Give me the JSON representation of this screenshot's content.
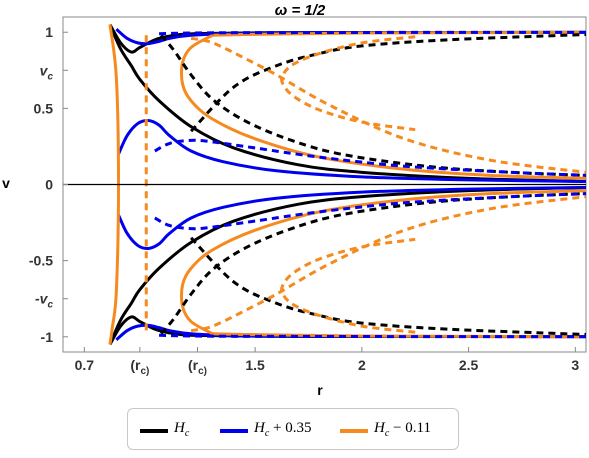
{
  "chart_data": {
    "type": "line",
    "title": "ω = 1/2",
    "xlabel": "r",
    "ylabel": "v",
    "xlim": [
      0.6,
      3.05
    ],
    "ylim": [
      -1.1,
      1.1
    ],
    "x_ticks": [
      {
        "value": 0.7,
        "label": "0.7"
      },
      {
        "value": 0.96,
        "label": "(r_c)_6D"
      },
      {
        "value": 1.23,
        "label": "(r_c)_5D"
      },
      {
        "value": 1.5,
        "label": "1.5"
      },
      {
        "value": 2.0,
        "label": "2"
      },
      {
        "value": 2.5,
        "label": "2.5"
      },
      {
        "value": 3.0,
        "label": "3"
      }
    ],
    "y_ticks": [
      {
        "value": 1,
        "label": "1"
      },
      {
        "value": 0.75,
        "label": "v_c"
      },
      {
        "value": 0.5,
        "label": "0.5"
      },
      {
        "value": 0,
        "label": "0"
      },
      {
        "value": -0.5,
        "label": "-0.5"
      },
      {
        "value": -0.75,
        "label": "-v_c"
      },
      {
        "value": -1,
        "label": "-1"
      }
    ],
    "legend_position": "bottom",
    "series": [
      {
        "name": "H_c",
        "color": "#000000",
        "style": "solid",
        "curves": [
          {
            "x": [
              0.82,
              0.87,
              0.92,
              0.96,
              1.05,
              1.2,
              1.4,
              1.7,
              2.0,
              2.5,
              3.05
            ],
            "y": [
              1.05,
              0.89,
              0.78,
              0.69,
              0.55,
              0.38,
              0.24,
              0.13,
              0.08,
              0.04,
              0.02
            ]
          },
          {
            "x": [
              0.82,
              0.87,
              0.92,
              0.96,
              1.05,
              1.2,
              1.4,
              1.7,
              2.0,
              2.5,
              3.05
            ],
            "y": [
              -1.05,
              -0.89,
              -0.78,
              -0.69,
              -0.55,
              -0.38,
              -0.24,
              -0.13,
              -0.08,
              -0.04,
              -0.02
            ]
          },
          {
            "x": [
              0.82,
              0.87,
              0.92,
              0.96,
              1.03,
              1.1,
              1.15,
              1.25,
              1.5,
              2.0,
              3.05
            ],
            "y": [
              1.05,
              0.93,
              0.87,
              0.9,
              0.95,
              0.975,
              0.985,
              0.992,
              0.996,
              0.998,
              0.999
            ]
          },
          {
            "x": [
              0.82,
              0.87,
              0.92,
              0.96,
              1.03,
              1.1,
              1.15,
              1.25,
              1.5,
              2.0,
              3.05
            ],
            "y": [
              -1.05,
              -0.93,
              -0.87,
              -0.9,
              -0.95,
              -0.975,
              -0.985,
              -0.992,
              -0.996,
              -0.998,
              -0.999
            ]
          }
        ]
      },
      {
        "name": "H_c + 0.35",
        "color": "#0000ee",
        "style": "solid",
        "curves": [
          {
            "x": [
              0.86,
              0.9,
              0.95,
              1.0,
              1.05,
              1.1,
              1.2,
              1.35,
              1.6,
              2.0,
              2.5,
              3.05
            ],
            "y": [
              0.2,
              0.32,
              0.4,
              0.42,
              0.39,
              0.32,
              0.22,
              0.15,
              0.09,
              0.05,
              0.03,
              0.02
            ]
          },
          {
            "x": [
              0.86,
              0.9,
              0.95,
              1.0,
              1.05,
              1.1,
              1.2,
              1.35,
              1.6,
              2.0,
              2.5,
              3.05
            ],
            "y": [
              -0.2,
              -0.32,
              -0.4,
              -0.42,
              -0.39,
              -0.32,
              -0.22,
              -0.15,
              -0.09,
              -0.05,
              -0.03,
              -0.02
            ]
          },
          {
            "x": [
              0.85,
              0.9,
              0.95,
              1.0,
              1.05,
              1.1,
              1.2,
              1.4,
              1.8,
              3.05
            ],
            "y": [
              1.02,
              0.96,
              0.93,
              0.925,
              0.94,
              0.96,
              0.98,
              0.992,
              0.997,
              0.999
            ]
          },
          {
            "x": [
              0.85,
              0.9,
              0.95,
              1.0,
              1.05,
              1.1,
              1.2,
              1.4,
              1.8,
              3.05
            ],
            "y": [
              -1.02,
              -0.96,
              -0.93,
              -0.925,
              -0.94,
              -0.96,
              -0.98,
              -0.992,
              -0.997,
              -0.999
            ]
          }
        ]
      },
      {
        "name": "H_c - 0.11",
        "color": "#f58a1f",
        "style": "solid",
        "curves": [
          {
            "x": [
              0.82,
              0.85,
              0.86,
              0.85,
              0.83,
              0.82
            ],
            "y": [
              1.05,
              0.7,
              0.0,
              -0.7,
              -0.95,
              -1.05
            ]
          },
          {
            "x": [
              1.3,
              1.2,
              1.16,
              1.16,
              1.2,
              1.3,
              1.5,
              1.8,
              2.2,
              2.6,
              3.05
            ],
            "y": [
              0.98,
              0.9,
              0.8,
              0.66,
              0.55,
              0.43,
              0.3,
              0.18,
              0.1,
              0.06,
              0.04
            ]
          },
          {
            "x": [
              1.3,
              1.2,
              1.16,
              1.16,
              1.2,
              1.3,
              1.5,
              1.8,
              2.2,
              2.6,
              3.05
            ],
            "y": [
              -0.98,
              -0.9,
              -0.8,
              -0.66,
              -0.55,
              -0.43,
              -0.3,
              -0.18,
              -0.1,
              -0.06,
              -0.04
            ]
          },
          {
            "x": [
              1.3,
              1.45,
              1.7,
              2.0,
              2.5,
              3.05
            ],
            "y": [
              0.98,
              0.985,
              0.99,
              0.995,
              0.997,
              0.999
            ]
          },
          {
            "x": [
              1.3,
              1.45,
              1.7,
              2.0,
              2.5,
              3.05
            ],
            "y": [
              -0.98,
              -0.985,
              -0.99,
              -0.995,
              -0.997,
              -0.999
            ]
          }
        ]
      },
      {
        "name": "",
        "color": "#000000",
        "style": "dashed",
        "curves": [
          {
            "x": [
              1.06,
              1.12,
              1.2,
              1.3,
              1.45,
              1.65,
              1.9,
              2.3,
              2.7,
              3.05
            ],
            "y": [
              0.98,
              0.88,
              0.72,
              0.56,
              0.42,
              0.3,
              0.2,
              0.12,
              0.08,
              0.06
            ]
          },
          {
            "x": [
              1.06,
              1.12,
              1.2,
              1.3,
              1.45,
              1.65,
              1.9,
              2.3,
              2.7,
              3.05
            ],
            "y": [
              -0.98,
              -0.88,
              -0.72,
              -0.56,
              -0.42,
              -0.3,
              -0.2,
              -0.12,
              -0.08,
              -0.06
            ]
          },
          {
            "x": [
              1.2,
              1.4,
              1.6,
              1.8,
              2.0,
              2.4,
              3.05
            ],
            "y": [
              0.35,
              0.64,
              0.78,
              0.86,
              0.91,
              0.95,
              0.985
            ]
          },
          {
            "x": [
              1.2,
              1.4,
              1.6,
              1.8,
              2.0,
              2.4,
              3.05
            ],
            "y": [
              -0.35,
              -0.64,
              -0.78,
              -0.86,
              -0.91,
              -0.95,
              -0.985
            ]
          }
        ]
      },
      {
        "name": "",
        "color": "#0000ee",
        "style": "dashed",
        "curves": [
          {
            "x": [
              1.03,
              1.1,
              1.2,
              1.3,
              1.5,
              1.8,
              2.2,
              2.7,
              3.05
            ],
            "y": [
              0.22,
              0.27,
              0.29,
              0.28,
              0.24,
              0.18,
              0.12,
              0.08,
              0.06
            ]
          },
          {
            "x": [
              1.03,
              1.1,
              1.2,
              1.3,
              1.5,
              1.8,
              2.2,
              2.7,
              3.05
            ],
            "y": [
              -0.22,
              -0.27,
              -0.29,
              -0.28,
              -0.24,
              -0.18,
              -0.12,
              -0.08,
              -0.06
            ]
          },
          {
            "x": [
              1.05,
              1.1,
              1.2,
              1.4,
              1.8,
              2.4,
              3.05
            ],
            "y": [
              0.99,
              0.992,
              0.995,
              0.997,
              0.998,
              0.999,
              0.999
            ]
          },
          {
            "x": [
              1.05,
              1.1,
              1.2,
              1.4,
              1.8,
              2.4,
              3.05
            ],
            "y": [
              -0.99,
              -0.992,
              -0.995,
              -0.997,
              -0.998,
              -0.999,
              -0.999
            ]
          }
        ]
      },
      {
        "name": "",
        "color": "#f58a1f",
        "style": "dashed",
        "curves": [
          {
            "x": [
              0.99,
              0.99,
              0.99,
              0.99,
              0.99
            ],
            "y": [
              0.98,
              0.5,
              0.0,
              -0.5,
              -0.98
            ]
          },
          {
            "x": [
              1.2,
              1.28,
              1.35,
              1.45,
              1.6,
              1.85,
              2.2,
              2.6,
              3.05
            ],
            "y": [
              0.96,
              0.94,
              0.9,
              0.83,
              0.72,
              0.52,
              0.3,
              0.16,
              0.08
            ]
          },
          {
            "x": [
              1.2,
              1.28,
              1.35,
              1.45,
              1.6,
              1.85,
              2.2,
              2.6,
              3.05
            ],
            "y": [
              -0.96,
              -0.94,
              -0.9,
              -0.83,
              -0.72,
              -0.52,
              -0.3,
              -0.16,
              -0.08
            ]
          },
          {
            "x": [
              2.25,
              2.0,
              1.8,
              1.68,
              1.63,
              1.63,
              1.68,
              1.8,
              2.0,
              2.25
            ],
            "y": [
              0.97,
              0.93,
              0.86,
              0.79,
              0.72,
              0.66,
              0.58,
              0.49,
              0.41,
              0.36
            ]
          },
          {
            "x": [
              2.25,
              2.0,
              1.8,
              1.68,
              1.63,
              1.63,
              1.68,
              1.8,
              2.0,
              2.25
            ],
            "y": [
              -0.97,
              -0.93,
              -0.86,
              -0.79,
              -0.72,
              -0.66,
              -0.58,
              -0.49,
              -0.41,
              -0.36
            ]
          }
        ]
      }
    ]
  },
  "legend": {
    "items": [
      {
        "label": "H_c",
        "color": "#000000"
      },
      {
        "label": "H_c + 0.35",
        "color": "#0000ee"
      },
      {
        "label": "H_c − 0.11",
        "color": "#f58a1f"
      }
    ]
  }
}
